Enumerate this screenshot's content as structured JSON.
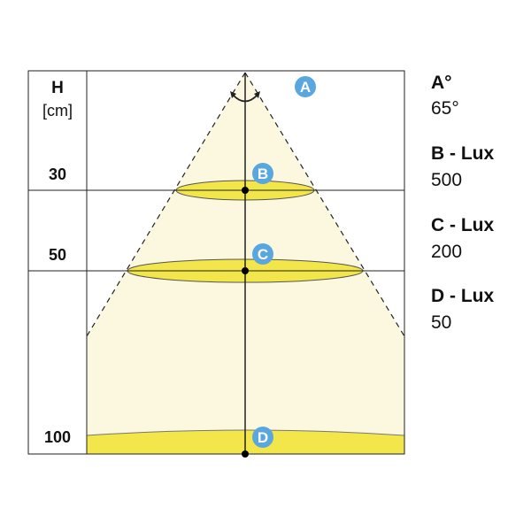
{
  "axis": {
    "title": "H",
    "unit": "[cm]",
    "ticks": [
      "30",
      "50",
      "100"
    ]
  },
  "markers": [
    "A",
    "B",
    "C",
    "D"
  ],
  "legend": [
    {
      "label": "A°",
      "value": "65°"
    },
    {
      "label": "B - Lux",
      "value": "500"
    },
    {
      "label": "C - Lux",
      "value": "200"
    },
    {
      "label": "D - Lux",
      "value": "50"
    }
  ],
  "colors": {
    "beam": "#fbf8df",
    "spot": "#f2e64a",
    "badge": "#5aa7df",
    "line": "#222222"
  }
}
